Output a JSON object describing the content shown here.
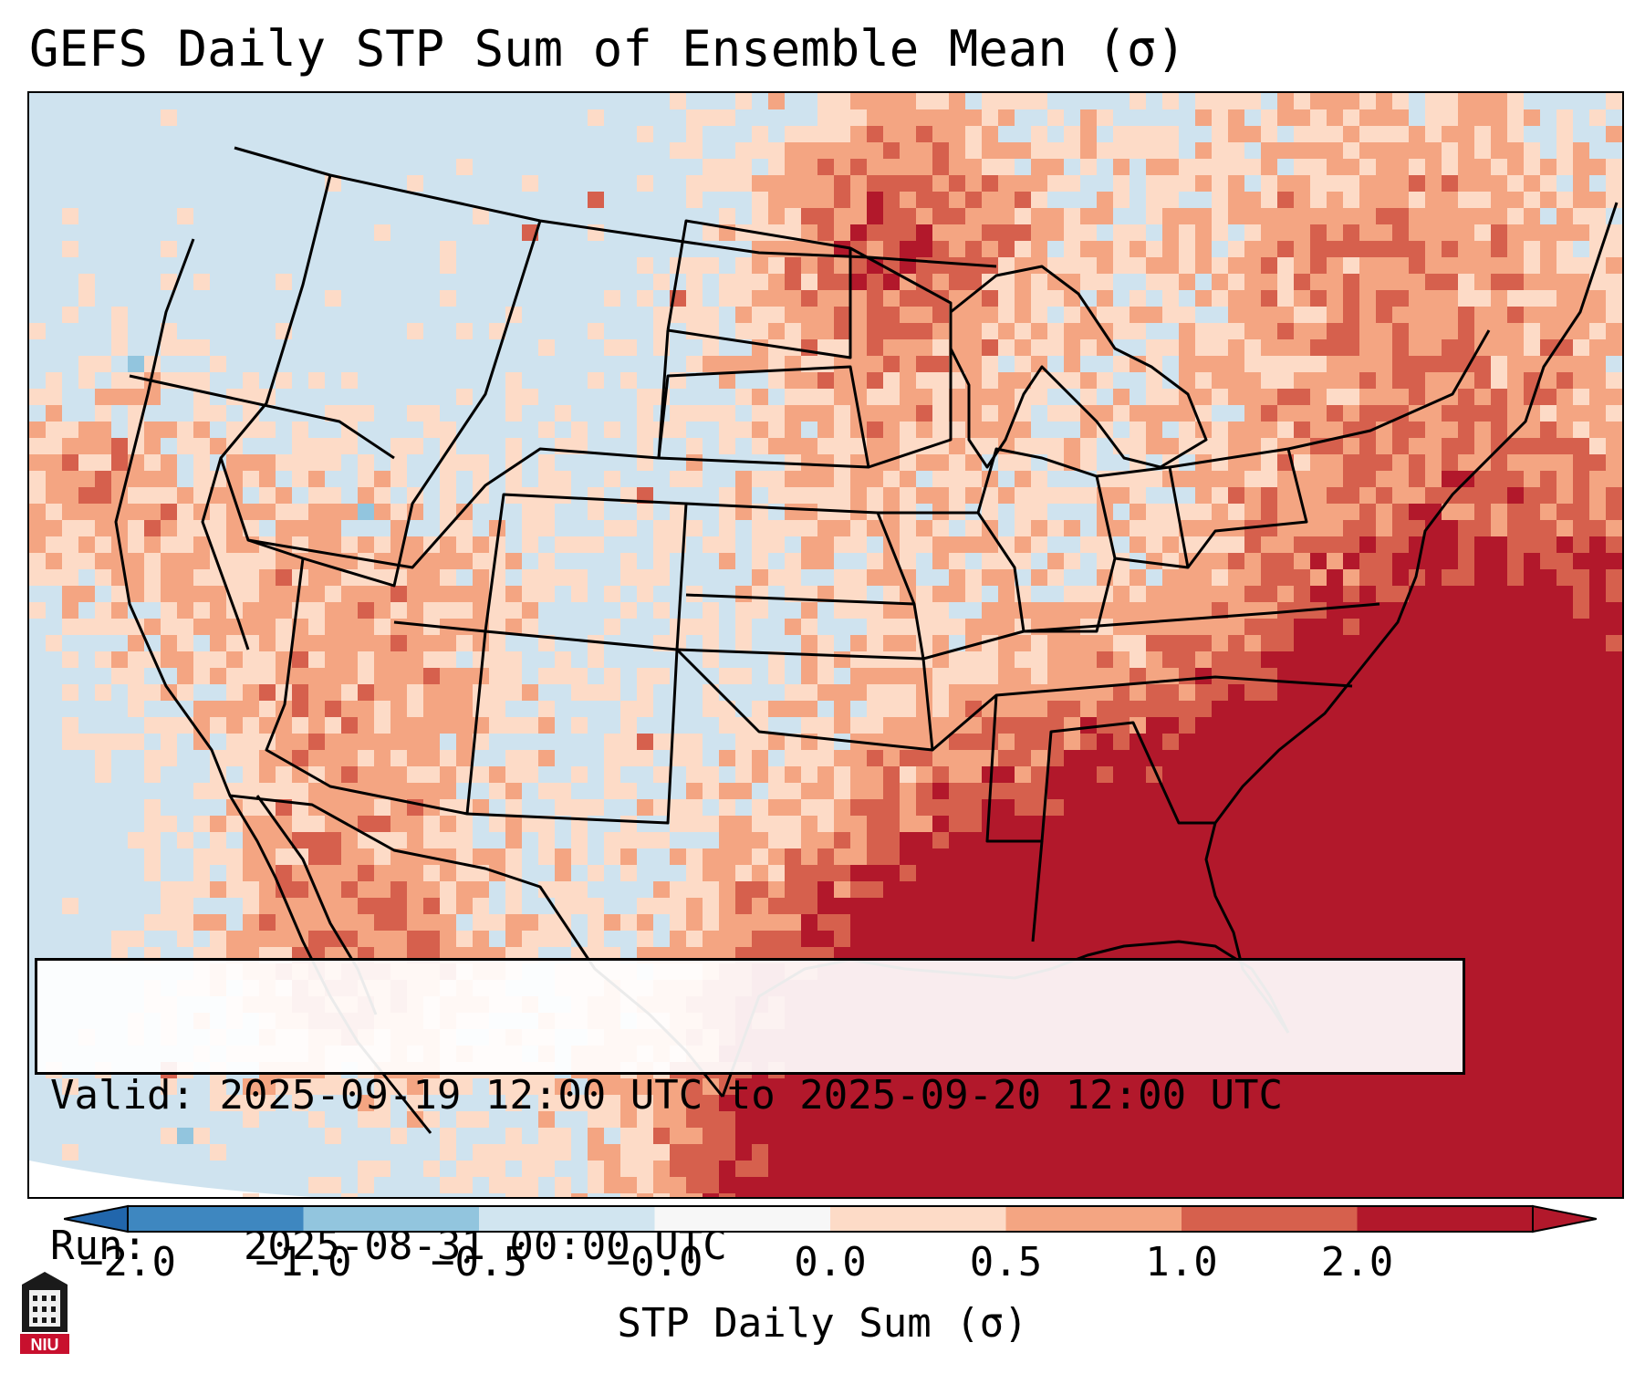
{
  "title": "GEFS Daily STP Sum of Ensemble Mean (σ)",
  "info_box": {
    "valid_label": "Valid:",
    "valid_value": "2025-09-19 12:00 UTC to 2025-09-20 12:00 UTC",
    "run_label": "Run:",
    "run_value": "2025-08-31 00:00 UTC"
  },
  "colorbar": {
    "label": "STP Daily Sum (σ)",
    "ticks": [
      "−2.0",
      "−1.0",
      "−0.5",
      "−0.0",
      "0.0",
      "0.5",
      "1.0",
      "2.0"
    ],
    "colors": [
      "#3e87c0",
      "#92c5de",
      "#d1e5f0",
      "#f7f7f7",
      "#fddbc7",
      "#f4a582",
      "#d6604d",
      "#b2182b"
    ],
    "extend_low_color": "#2166ac",
    "extend_high_color": "#b2182b"
  },
  "logo": {
    "text": "NIU",
    "colors": {
      "shield": "#1a1a1a",
      "banner": "#c8102e"
    }
  },
  "map": {
    "projection": "Lambert Conformal, CONUS",
    "region": "Continental United States, Gulf of Mexico, western Atlantic",
    "background_color": "#cfe3ef",
    "outline_color": "#000000"
  }
}
